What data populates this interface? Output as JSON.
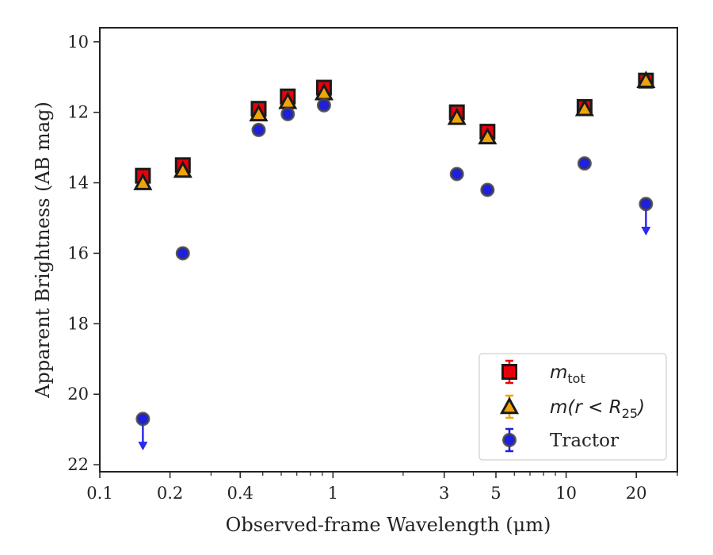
{
  "chart_data": {
    "type": "scatter",
    "title": "",
    "xlabel": "Observed-frame Wavelength (μm)",
    "ylabel": "Apparent Brightness (AB mag)",
    "xscale": "log",
    "xlim": [
      0.1,
      30
    ],
    "ylim": [
      22.2,
      9.6
    ],
    "y_inverted": true,
    "x_ticks": [
      {
        "value": 0.1,
        "label": "0.1"
      },
      {
        "value": 0.2,
        "label": "0.2"
      },
      {
        "value": 0.4,
        "label": "0.4"
      },
      {
        "value": 1,
        "label": "1"
      },
      {
        "value": 3,
        "label": "3"
      },
      {
        "value": 5,
        "label": "5"
      },
      {
        "value": 10,
        "label": "10"
      },
      {
        "value": 20,
        "label": "20"
      }
    ],
    "x_minor_ticks": [
      0.3,
      0.5,
      0.6,
      0.7,
      0.8,
      0.9,
      2,
      4,
      6,
      7,
      8,
      9,
      30
    ],
    "y_ticks": [
      {
        "value": 10,
        "label": "10"
      },
      {
        "value": 12,
        "label": "12"
      },
      {
        "value": 14,
        "label": "14"
      },
      {
        "value": 16,
        "label": "16"
      },
      {
        "value": 18,
        "label": "18"
      },
      {
        "value": 20,
        "label": "20"
      },
      {
        "value": 22,
        "label": "22"
      }
    ],
    "grid": false,
    "legend_position": "lower-right",
    "series": [
      {
        "name": "m_tot",
        "marker": "square",
        "color": "#e8000b",
        "points": [
          {
            "x": 0.153,
            "y": 13.8
          },
          {
            "x": 0.227,
            "y": 13.5
          },
          {
            "x": 0.48,
            "y": 11.9
          },
          {
            "x": 0.64,
            "y": 11.55
          },
          {
            "x": 0.915,
            "y": 11.3
          },
          {
            "x": 3.4,
            "y": 12.0
          },
          {
            "x": 4.6,
            "y": 12.55
          },
          {
            "x": 12.0,
            "y": 11.85
          },
          {
            "x": 22.0,
            "y": 11.1
          }
        ]
      },
      {
        "name": "m(r < R25)",
        "marker": "triangle",
        "color": "#f0a30a",
        "points": [
          {
            "x": 0.153,
            "y": 14.0
          },
          {
            "x": 0.227,
            "y": 13.65
          },
          {
            "x": 0.48,
            "y": 12.05
          },
          {
            "x": 0.64,
            "y": 11.7
          },
          {
            "x": 0.915,
            "y": 11.45
          },
          {
            "x": 3.4,
            "y": 12.15
          },
          {
            "x": 4.6,
            "y": 12.7
          },
          {
            "x": 12.0,
            "y": 11.9
          },
          {
            "x": 22.0,
            "y": 11.1
          }
        ]
      },
      {
        "name": "Tractor",
        "marker": "circle",
        "color": "#1f1fe0",
        "points": [
          {
            "x": 0.153,
            "y": 20.7,
            "upper_limit": true
          },
          {
            "x": 0.227,
            "y": 16.0
          },
          {
            "x": 0.48,
            "y": 12.5
          },
          {
            "x": 0.64,
            "y": 12.05
          },
          {
            "x": 0.915,
            "y": 11.8
          },
          {
            "x": 3.4,
            "y": 13.75
          },
          {
            "x": 4.6,
            "y": 14.2
          },
          {
            "x": 12.0,
            "y": 13.45
          },
          {
            "x": 22.0,
            "y": 14.6,
            "upper_limit": true
          }
        ]
      }
    ],
    "legend": {
      "entries": [
        {
          "series": "m_tot",
          "base": "m",
          "sub": "tot",
          "suffix": ""
        },
        {
          "series": "m(r < R25)",
          "base": "m(r < R",
          "sub": "25",
          "suffix": ")"
        },
        {
          "series": "Tractor",
          "text": "Tractor"
        }
      ]
    }
  }
}
